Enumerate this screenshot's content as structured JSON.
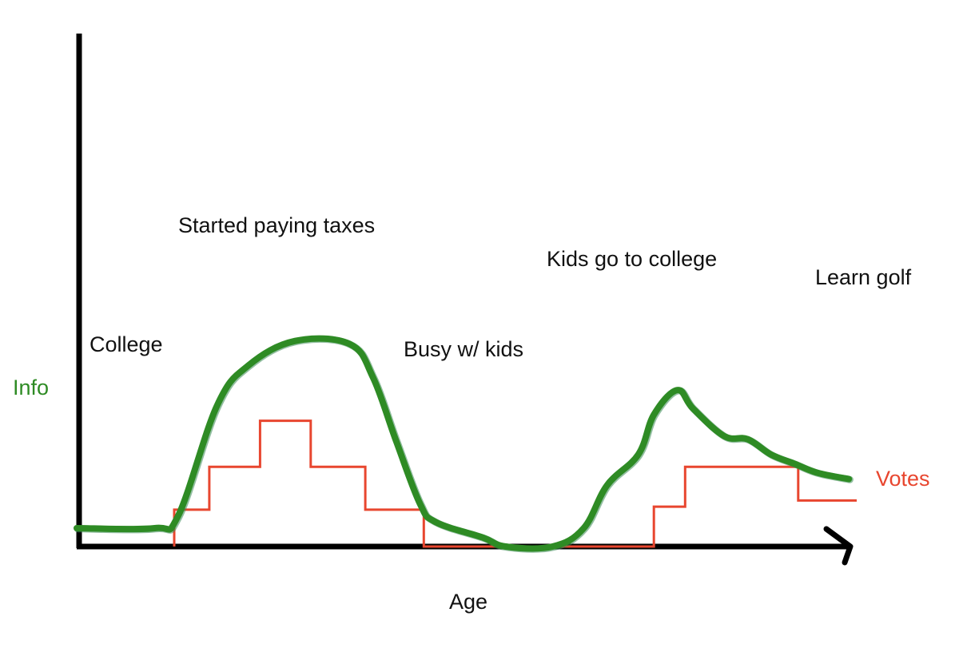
{
  "chart_data": {
    "type": "line",
    "title": "",
    "xlabel": "Age",
    "ylabel": "Info",
    "x_ticks": false,
    "y_ticks": false,
    "grid": false,
    "xlim": [
      0,
      100
    ],
    "ylim": [
      0,
      100
    ],
    "colors": {
      "info": "#2e8b24",
      "info_dark": "#3a8a55",
      "votes": "#e8462f",
      "axis": "#000000",
      "text": "#111111"
    },
    "series": [
      {
        "name": "Info",
        "style": "hand-drawn curve",
        "x": [
          0,
          10,
          13,
          18,
          22,
          28,
          35,
          38,
          41,
          44,
          46,
          52,
          55,
          61,
          65,
          68,
          72,
          74,
          77,
          79,
          83,
          86,
          89,
          92,
          95,
          99
        ],
        "y": [
          6,
          6,
          10,
          46,
          59,
          67,
          66,
          55,
          34,
          14,
          8,
          3,
          0,
          0,
          6,
          20,
          30,
          43,
          51,
          45,
          36,
          35,
          30,
          27,
          24,
          22
        ]
      },
      {
        "name": "Votes",
        "style": "step",
        "x": [
          12.5,
          12.5,
          17,
          17,
          23.5,
          23.5,
          30,
          30,
          37,
          37,
          44.5,
          44.5,
          74,
          74,
          78,
          78,
          92.5,
          92.5,
          100
        ],
        "y": [
          0,
          12,
          12,
          26,
          26,
          41,
          41,
          26,
          26,
          12,
          12,
          0,
          0,
          13,
          13,
          26,
          26,
          15,
          15
        ]
      }
    ],
    "annotations": [
      {
        "id": "college",
        "text": "College"
      },
      {
        "id": "taxes",
        "text": "Started paying taxes"
      },
      {
        "id": "busy",
        "text": "Busy w/ kids"
      },
      {
        "id": "kids-college",
        "text": "Kids go to college"
      },
      {
        "id": "golf",
        "text": "Learn golf"
      }
    ]
  }
}
